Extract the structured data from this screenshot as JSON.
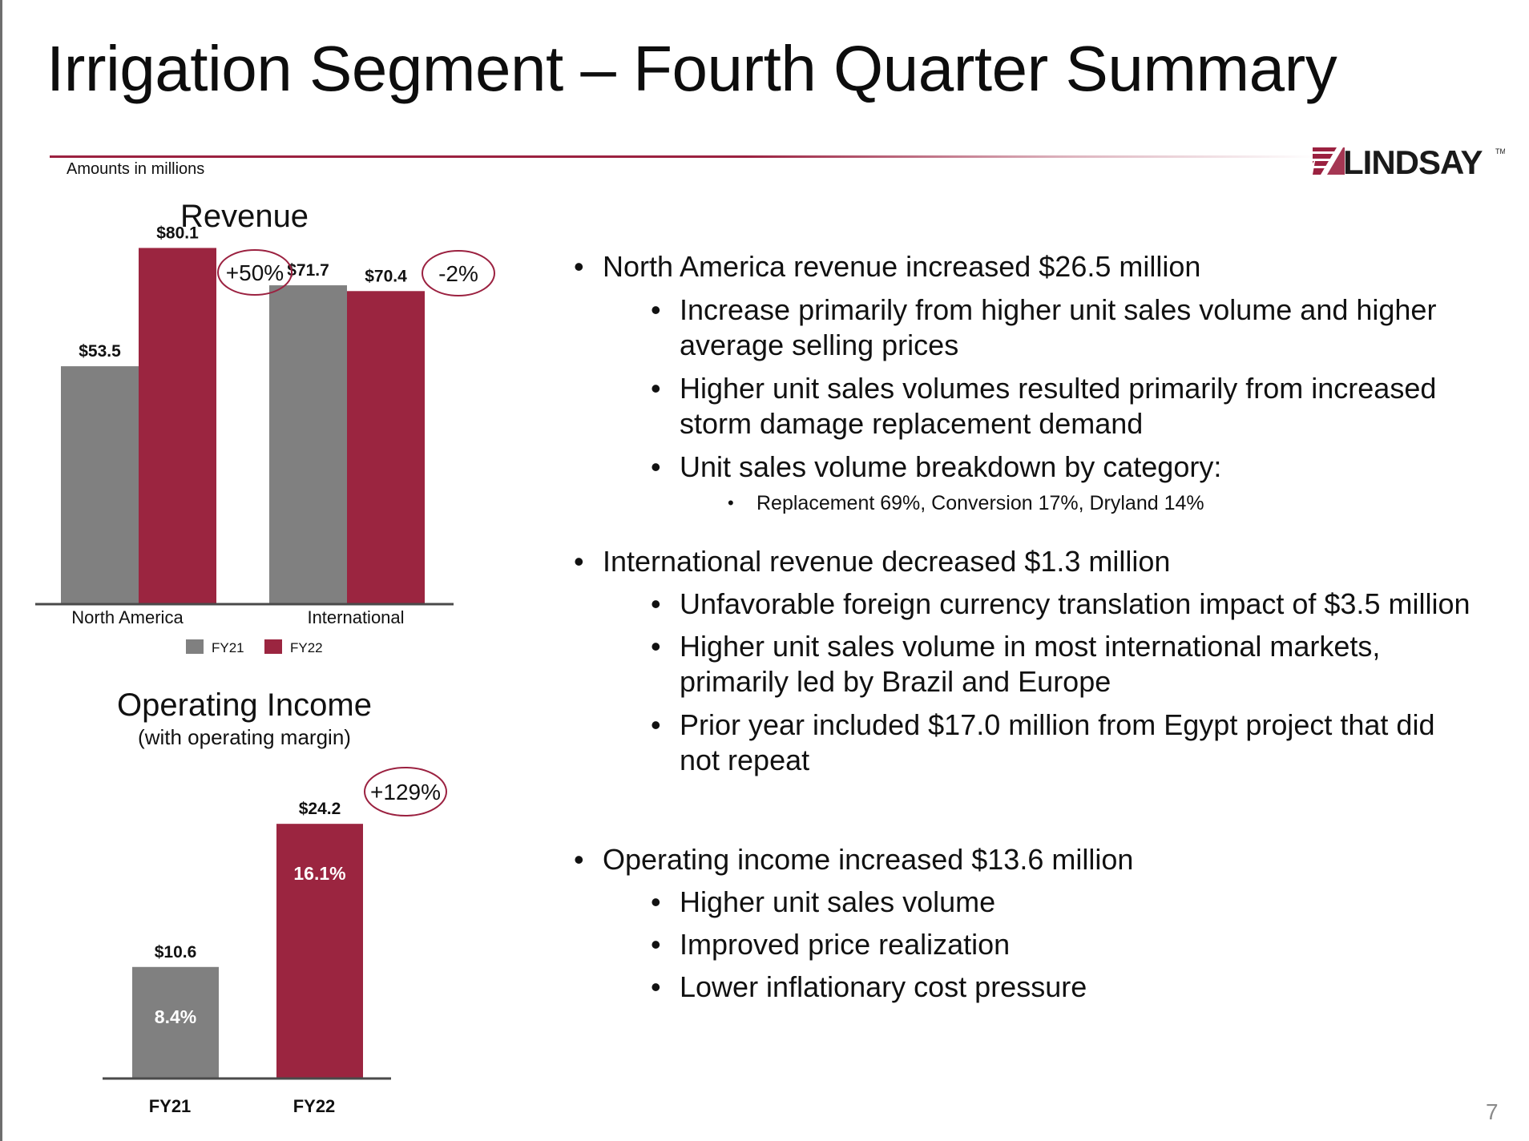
{
  "title": "Irrigation Segment – Fourth Quarter Summary",
  "brand": {
    "name": "LINDSAY",
    "tm": "TM",
    "color": "#1a1a1a",
    "accent": "#9b2140"
  },
  "amounts_note": "Amounts in millions",
  "page_number": "7",
  "colors": {
    "fy21": "#808080",
    "fy22": "#9b2540",
    "axis": "#4a4a4a",
    "circle": "#9b2140"
  },
  "chart_data": [
    {
      "type": "bar",
      "title": "Revenue",
      "categories": [
        "North America",
        "International"
      ],
      "series": [
        {
          "name": "FY21",
          "values": [
            53.5,
            71.7
          ],
          "labels": [
            "$53.5",
            "$71.7"
          ]
        },
        {
          "name": "FY22",
          "values": [
            80.1,
            70.4
          ],
          "labels": [
            "$80.1",
            "$70.4"
          ]
        }
      ],
      "annotations": [
        "+50%",
        "-2%"
      ],
      "legend": "bottom",
      "grid": false,
      "ylim": [
        0,
        100
      ]
    },
    {
      "type": "bar",
      "title": "Operating Income",
      "subtitle": "(with operating margin)",
      "categories": [
        "FY21",
        "FY22"
      ],
      "values": [
        10.6,
        24.2
      ],
      "labels": [
        "$10.6",
        "$24.2"
      ],
      "margins": [
        "8.4%",
        "16.1%"
      ],
      "annotations": [
        "+129%"
      ],
      "grid": false,
      "ylim": [
        0,
        30
      ]
    }
  ],
  "bullets": {
    "north_america": {
      "heading": "North America revenue increased $26.5 million",
      "items": [
        [
          "Increase primarily from higher unit sales volume and higher",
          "average selling prices"
        ],
        [
          "Higher unit sales volumes resulted primarily from increased",
          "storm damage replacement demand"
        ],
        [
          "Unit sales volume breakdown by category:"
        ]
      ],
      "sub_item": "Replacement 69%, Conversion 17%, Dryland 14%"
    },
    "international": {
      "heading": "International revenue decreased $1.3 million",
      "items": [
        [
          "Unfavorable foreign currency translation impact of $3.5 million"
        ],
        [
          "Higher unit sales volume in most international markets,",
          "primarily led by Brazil and Europe"
        ],
        [
          "Prior year included $17.0 million from Egypt project that did",
          "not repeat"
        ]
      ]
    },
    "operating": {
      "heading": "Operating income increased $13.6 million",
      "items": [
        [
          "Higher unit sales volume"
        ],
        [
          "Improved price realization"
        ],
        [
          "Lower inflationary cost pressure"
        ]
      ]
    },
    "bullet_char": "•"
  }
}
